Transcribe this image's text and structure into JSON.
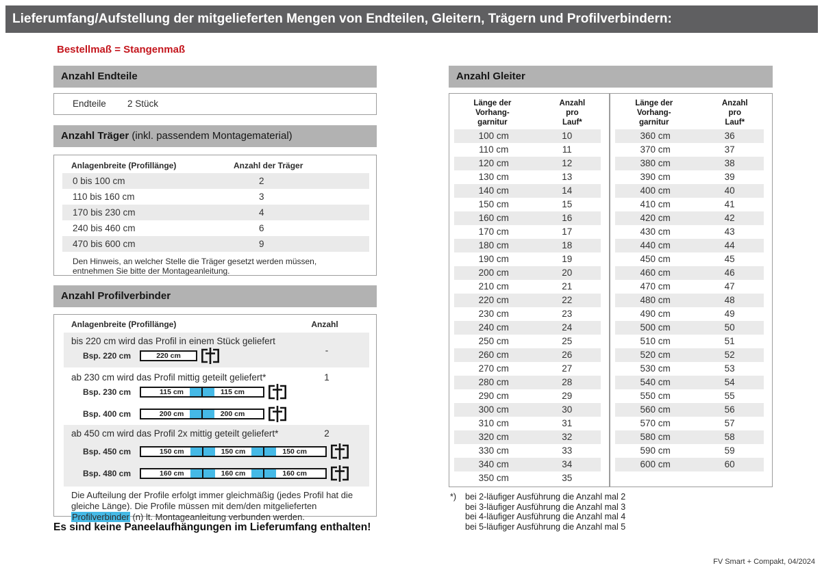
{
  "title": "Lieferumfang/Aufstellung der mitgelieferten Mengen von Endteilen, Gleitern, Trägern und Profilverbindern:",
  "subtitle": "Bestellmaß = Stangenmaß",
  "colors": {
    "title_bar_gray": "#5f5f61",
    "section_header_gray": "#b2b2b2",
    "row_stripe_gray": "#eaeaea",
    "highlight_blue": "#45b9e6",
    "accent_red": "#c4161d"
  },
  "endteile": {
    "header": "Anzahl Endteile",
    "label": "Endteile",
    "value": "2 Stück"
  },
  "traeger": {
    "header_bold": "Anzahl Träger",
    "header_rest": " (inkl. passendem Montagematerial)",
    "col1": "Anlagenbreite (Profillänge)",
    "col2": "Anzahl der Träger",
    "rows": [
      [
        "0 bis 100 cm",
        "2"
      ],
      [
        "110 bis 160 cm",
        "3"
      ],
      [
        "170 bis 230 cm",
        "4"
      ],
      [
        "240 bis 460 cm",
        "6"
      ],
      [
        "470 bis 600 cm",
        "9"
      ]
    ],
    "note": "Den Hinweis, an welcher Stelle die Träger gesetzt werden müssen, entnehmen Sie bitte der Montageanleitung."
  },
  "profilverbinder": {
    "header": "Anzahl Profilverbinder",
    "col1": "Anlagenbreite (Profillänge)",
    "col2": "Anzahl",
    "cases": [
      {
        "text": "bis 220 cm wird das Profil in einem Stück geliefert",
        "anzahl": "-",
        "examples": [
          {
            "label": "Bsp. 220 cm",
            "segments": [
              "220 cm"
            ]
          }
        ]
      },
      {
        "text": "ab 230 cm wird das Profil mittig geteilt geliefert*",
        "anzahl": "1",
        "examples": [
          {
            "label": "Bsp. 230 cm",
            "segments": [
              "115 cm",
              "115 cm"
            ]
          },
          {
            "label": "Bsp. 400 cm",
            "segments": [
              "200 cm",
              "200 cm"
            ]
          }
        ]
      },
      {
        "text": "ab 450 cm wird das Profil 2x mittig geteilt geliefert*",
        "anzahl": "2",
        "examples": [
          {
            "label": "Bsp. 450 cm",
            "segments": [
              "150 cm",
              "150 cm",
              "150 cm"
            ]
          },
          {
            "label": "Bsp. 480 cm",
            "segments": [
              "160 cm",
              "160 cm",
              "160 cm"
            ]
          }
        ]
      }
    ],
    "note_parts": [
      "Die Aufteilung der Profile erfolgt immer gleichmäßig (jedes Profil hat die gleiche Länge). Die Profile müssen mit dem/den mitgelieferten ",
      "Profilverbinder",
      " (n) lt. Montageanleitung verbunden werden."
    ]
  },
  "no_panel_note": "Es sind keine Paneelaufhängungen im Lieferumfang enthalten!",
  "gleiter": {
    "header": "Anzahl Gleiter",
    "col1": "Länge der\nVorhang-\ngarnitur",
    "col2": "Anzahl\npro\nLauf*",
    "left_rows": [
      [
        "100 cm",
        "10"
      ],
      [
        "110 cm",
        "11"
      ],
      [
        "120 cm",
        "12"
      ],
      [
        "130 cm",
        "13"
      ],
      [
        "140 cm",
        "14"
      ],
      [
        "150 cm",
        "15"
      ],
      [
        "160 cm",
        "16"
      ],
      [
        "170 cm",
        "17"
      ],
      [
        "180 cm",
        "18"
      ],
      [
        "190 cm",
        "19"
      ],
      [
        "200 cm",
        "20"
      ],
      [
        "210 cm",
        "21"
      ],
      [
        "220 cm",
        "22"
      ],
      [
        "230 cm",
        "23"
      ],
      [
        "240 cm",
        "24"
      ],
      [
        "250 cm",
        "25"
      ],
      [
        "260 cm",
        "26"
      ],
      [
        "270 cm",
        "27"
      ],
      [
        "280 cm",
        "28"
      ],
      [
        "290 cm",
        "29"
      ],
      [
        "300 cm",
        "30"
      ],
      [
        "310 cm",
        "31"
      ],
      [
        "320 cm",
        "32"
      ],
      [
        "330 cm",
        "33"
      ],
      [
        "340 cm",
        "34"
      ],
      [
        "350 cm",
        "35"
      ]
    ],
    "right_rows": [
      [
        "360 cm",
        "36"
      ],
      [
        "370 cm",
        "37"
      ],
      [
        "380 cm",
        "38"
      ],
      [
        "390 cm",
        "39"
      ],
      [
        "400 cm",
        "40"
      ],
      [
        "410 cm",
        "41"
      ],
      [
        "420 cm",
        "42"
      ],
      [
        "430 cm",
        "43"
      ],
      [
        "440 cm",
        "44"
      ],
      [
        "450 cm",
        "45"
      ],
      [
        "460 cm",
        "46"
      ],
      [
        "470 cm",
        "47"
      ],
      [
        "480 cm",
        "48"
      ],
      [
        "490 cm",
        "49"
      ],
      [
        "500 cm",
        "50"
      ],
      [
        "510 cm",
        "51"
      ],
      [
        "520 cm",
        "52"
      ],
      [
        "530 cm",
        "53"
      ],
      [
        "540 cm",
        "54"
      ],
      [
        "550 cm",
        "55"
      ],
      [
        "560 cm",
        "56"
      ],
      [
        "570 cm",
        "57"
      ],
      [
        "580 cm",
        "58"
      ],
      [
        "590 cm",
        "59"
      ],
      [
        "600 cm",
        "60"
      ]
    ]
  },
  "footnote_marker": "*)",
  "footnotes": [
    "bei 2-läufiger Ausführung die Anzahl mal 2",
    "bei 3-läufiger Ausführung die Anzahl mal 3",
    "bei 4-läufiger Ausführung die Anzahl mal 4",
    "bei 5-läufiger Ausführung die Anzahl mal 5"
  ],
  "footer": "FV Smart + Compakt, 04/2024"
}
